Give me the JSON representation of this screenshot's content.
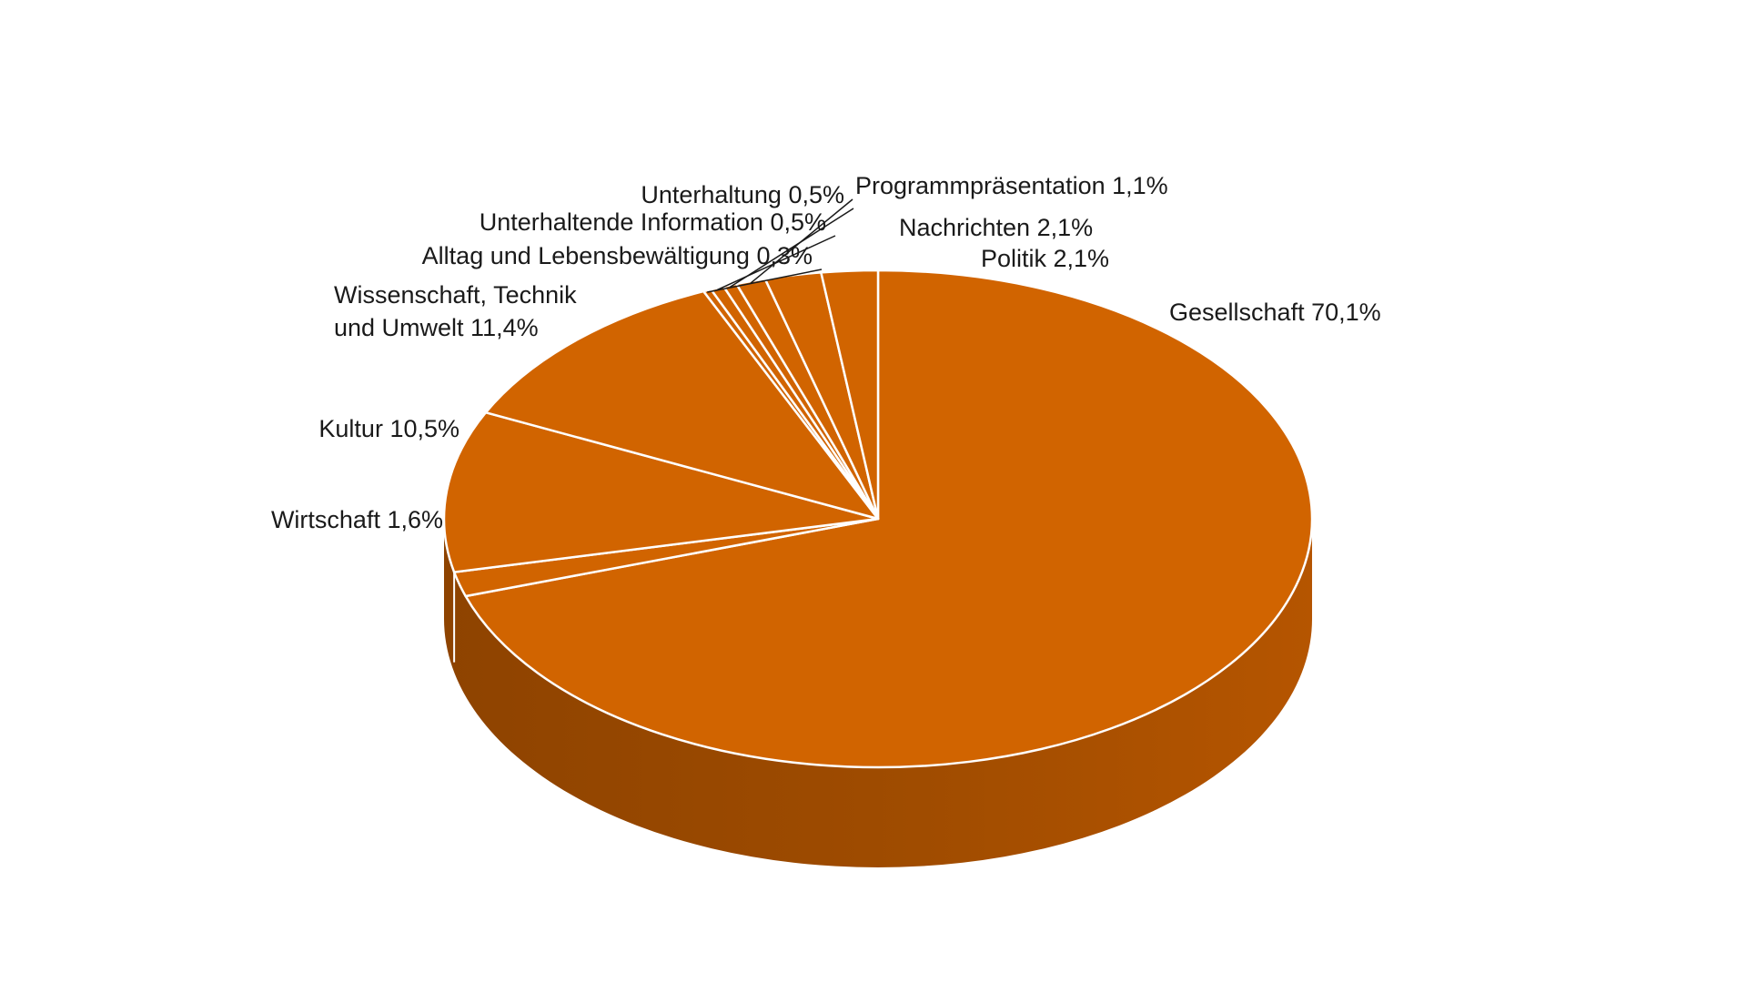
{
  "chart_data": {
    "type": "pie",
    "style": "3d",
    "colors": {
      "top": "#D16400",
      "side_dark": "#8E4300",
      "side_light": "#B35400",
      "separator": "#FFFFFF"
    },
    "slices": [
      {
        "label": "Gesellschaft",
        "label_lines": [
          "Gesellschaft  70,1%"
        ],
        "value": 70.1
      },
      {
        "label": "Wirtschaft",
        "label_lines": [
          "Wirtschaft  1,6%"
        ],
        "value": 1.6
      },
      {
        "label": "Kultur",
        "label_lines": [
          "Kultur  10,5%"
        ],
        "value": 10.5
      },
      {
        "label": "Wissenschaft, Technik und Umwelt",
        "label_lines": [
          "Wissenschaft, Technik",
          "und Umwelt  11,4%"
        ],
        "value": 11.4
      },
      {
        "label": "Alltag und Lebensbewältigung",
        "label_lines": [
          "Alltag und Lebensbewältigung  0,3%"
        ],
        "value": 0.3
      },
      {
        "label": "Unterhaltende Information",
        "label_lines": [
          "Unterhaltende Information  0,5%"
        ],
        "value": 0.5
      },
      {
        "label": "Unterhaltung",
        "label_lines": [
          "Unterhaltung 0,5%"
        ],
        "value": 0.5
      },
      {
        "label": "Programmpräsentation",
        "label_lines": [
          "Programmpräsentation 1,1%"
        ],
        "value": 1.1
      },
      {
        "label": "Nachrichten",
        "label_lines": [
          "Nachrichten  2,1%"
        ],
        "value": 2.1
      },
      {
        "label": "Politik",
        "label_lines": [
          "Politik  2,1%"
        ],
        "value": 2.1
      }
    ]
  }
}
